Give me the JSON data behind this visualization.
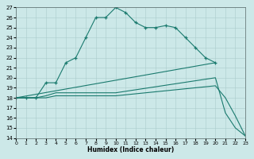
{
  "xlabel": "Humidex (Indice chaleur)",
  "xlim": [
    0,
    23
  ],
  "ylim": [
    14,
    27
  ],
  "yticks": [
    14,
    15,
    16,
    17,
    18,
    19,
    20,
    21,
    22,
    23,
    24,
    25,
    26,
    27
  ],
  "xticks": [
    0,
    1,
    2,
    3,
    4,
    5,
    6,
    7,
    8,
    9,
    10,
    11,
    12,
    13,
    14,
    15,
    16,
    17,
    18,
    19,
    20,
    21,
    22,
    23
  ],
  "bg_color": "#cce8e8",
  "grid_color": "#aacccc",
  "line_color": "#1a7a6e",
  "lines": [
    {
      "x": [
        0,
        1,
        2,
        3,
        4,
        5,
        6,
        7,
        8,
        9,
        10,
        11,
        12,
        13,
        14,
        15,
        16,
        17,
        18,
        19,
        20
      ],
      "y": [
        18,
        18,
        18,
        19.5,
        19.5,
        21.5,
        22,
        24,
        26,
        26,
        27,
        26.5,
        25.5,
        25,
        25,
        25.2,
        25,
        24,
        23,
        22,
        21.5
      ],
      "marker": "+"
    },
    {
      "x": [
        0,
        20
      ],
      "y": [
        18,
        21.5
      ],
      "marker": null
    },
    {
      "x": [
        0,
        1,
        2,
        3,
        4,
        5,
        6,
        7,
        8,
        9,
        10,
        20,
        21,
        22,
        23
      ],
      "y": [
        18,
        18,
        18,
        18.2,
        18.5,
        18.5,
        18.5,
        18.5,
        18.5,
        18.5,
        18.5,
        20.0,
        16.5,
        15.0,
        14.2
      ],
      "marker": null
    },
    {
      "x": [
        0,
        1,
        2,
        3,
        4,
        5,
        6,
        7,
        8,
        9,
        10,
        20,
        21,
        22,
        23
      ],
      "y": [
        18,
        18,
        18,
        18.0,
        18.2,
        18.2,
        18.2,
        18.2,
        18.2,
        18.2,
        18.2,
        19.2,
        18.0,
        16.2,
        14.2
      ],
      "marker": null
    }
  ]
}
